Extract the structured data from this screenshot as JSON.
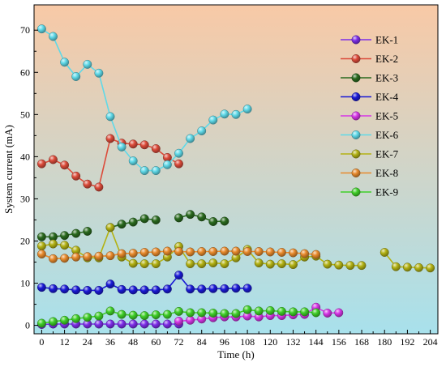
{
  "chart_data": {
    "type": "line",
    "title": "",
    "xlabel": "Time (h)",
    "ylabel": "System current (mA)",
    "xlim": [
      -4,
      208
    ],
    "ylim": [
      -2,
      76
    ],
    "xticks": [
      0,
      12,
      24,
      36,
      48,
      60,
      72,
      84,
      96,
      108,
      120,
      132,
      144,
      156,
      168,
      180,
      192,
      204
    ],
    "yticks": [
      0,
      10,
      20,
      30,
      40,
      50,
      60,
      70
    ],
    "background": {
      "top": "#f8c9a6",
      "bottom": "#a8e1ec"
    },
    "legend_position": "right",
    "series": [
      {
        "name": "EK-1",
        "color": "#7d2ee8",
        "x": [
          0,
          6,
          12,
          18,
          24,
          30,
          36,
          42,
          48,
          54,
          60,
          66,
          72
        ],
        "y": [
          0.2,
          0.3,
          0.3,
          0.3,
          0.3,
          0.3,
          0.3,
          0.3,
          0.3,
          0.3,
          0.3,
          0.3,
          0.3
        ]
      },
      {
        "name": "EK-2",
        "color": "#dc4b3a",
        "x": [
          0,
          6,
          12,
          18,
          24,
          30,
          36,
          42,
          48,
          54,
          60,
          66,
          72
        ],
        "y": [
          38.3,
          39.3,
          38.0,
          35.4,
          33.5,
          32.8,
          44.3,
          43.2,
          43.0,
          42.8,
          41.9,
          39.8,
          38.3
        ]
      },
      {
        "name": "EK-3",
        "color": "#2a6a1e",
        "x": [
          0,
          6,
          12,
          18,
          24,
          36,
          42,
          48,
          54,
          60,
          72,
          78,
          84,
          90,
          96
        ],
        "y": [
          21.0,
          21.0,
          21.3,
          21.8,
          22.3,
          23.2,
          24.0,
          24.5,
          25.3,
          25.0,
          25.5,
          26.3,
          25.7,
          24.6,
          24.7
        ]
      },
      {
        "name": "EK-4",
        "color": "#1a1ad6",
        "x": [
          0,
          6,
          12,
          18,
          24,
          30,
          36,
          42,
          48,
          54,
          60,
          66,
          72,
          78,
          84,
          90,
          96,
          102,
          108
        ],
        "y": [
          9.0,
          8.7,
          8.6,
          8.4,
          8.3,
          8.3,
          9.8,
          8.5,
          8.4,
          8.4,
          8.4,
          8.6,
          11.9,
          8.6,
          8.6,
          8.7,
          8.7,
          8.8,
          8.8
        ]
      },
      {
        "name": "EK-5",
        "color": "#d636e6",
        "x": [
          72,
          78,
          84,
          90,
          96,
          102,
          108,
          114,
          120,
          126,
          132,
          138,
          144,
          150,
          156
        ],
        "y": [
          1.0,
          1.2,
          1.5,
          1.8,
          2.0,
          2.0,
          2.2,
          2.0,
          2.3,
          2.3,
          2.5,
          2.6,
          4.3,
          2.9,
          3.0
        ]
      },
      {
        "name": "EK-6",
        "color": "#5fd9e8",
        "x": [
          0,
          6,
          12,
          18,
          24,
          30,
          36,
          42,
          48,
          54,
          60,
          66,
          72,
          78,
          84,
          90,
          96,
          102,
          108
        ],
        "y": [
          70.3,
          68.5,
          62.4,
          59.0,
          61.9,
          59.8,
          49.5,
          42.3,
          39.0,
          36.7,
          36.7,
          38.1,
          40.8,
          44.3,
          46.1,
          48.7,
          50.1,
          50.0,
          51.3
        ]
      },
      {
        "name": "EK-7",
        "color": "#b3b214",
        "x": [
          0,
          6,
          12,
          18,
          24,
          30,
          36,
          42,
          48,
          54,
          60,
          66,
          72,
          78,
          84,
          90,
          96,
          102,
          108,
          114,
          120,
          126,
          132,
          138,
          144,
          150,
          156,
          162,
          168,
          180,
          186,
          192,
          198,
          204
        ],
        "y": [
          18.8,
          19.3,
          19.0,
          17.8,
          16.0,
          16.0,
          23.2,
          16.2,
          14.7,
          14.6,
          14.6,
          16.2,
          18.7,
          14.6,
          14.6,
          14.8,
          14.6,
          16.0,
          18.0,
          14.8,
          14.5,
          14.6,
          14.4,
          16.2,
          16.4,
          14.5,
          14.3,
          14.2,
          14.2,
          17.3,
          13.9,
          13.8,
          13.7,
          13.6
        ]
      },
      {
        "name": "EK-8",
        "color": "#e88a2c",
        "x": [
          0,
          6,
          12,
          18,
          24,
          30,
          36,
          42,
          48,
          54,
          60,
          66,
          72,
          78,
          84,
          90,
          96,
          102,
          108,
          114,
          120,
          126,
          132,
          138,
          144
        ],
        "y": [
          16.9,
          15.8,
          15.9,
          16.2,
          16.3,
          16.4,
          16.5,
          17.0,
          17.1,
          17.3,
          17.4,
          17.6,
          17.5,
          17.4,
          17.5,
          17.5,
          17.6,
          17.6,
          17.5,
          17.5,
          17.4,
          17.3,
          17.2,
          17.0,
          16.8
        ]
      },
      {
        "name": "EK-9",
        "color": "#3fcf28",
        "x": [
          0,
          6,
          12,
          18,
          24,
          30,
          36,
          42,
          48,
          54,
          60,
          66,
          72,
          78,
          84,
          90,
          96,
          102,
          108,
          114,
          120,
          126,
          132,
          138,
          144
        ],
        "y": [
          0.5,
          0.9,
          1.2,
          1.6,
          1.9,
          2.2,
          3.4,
          2.6,
          2.4,
          2.3,
          2.5,
          2.6,
          3.3,
          3.0,
          3.0,
          2.9,
          2.8,
          2.8,
          3.7,
          3.4,
          3.5,
          3.3,
          3.2,
          3.2,
          3.0
        ]
      }
    ]
  }
}
